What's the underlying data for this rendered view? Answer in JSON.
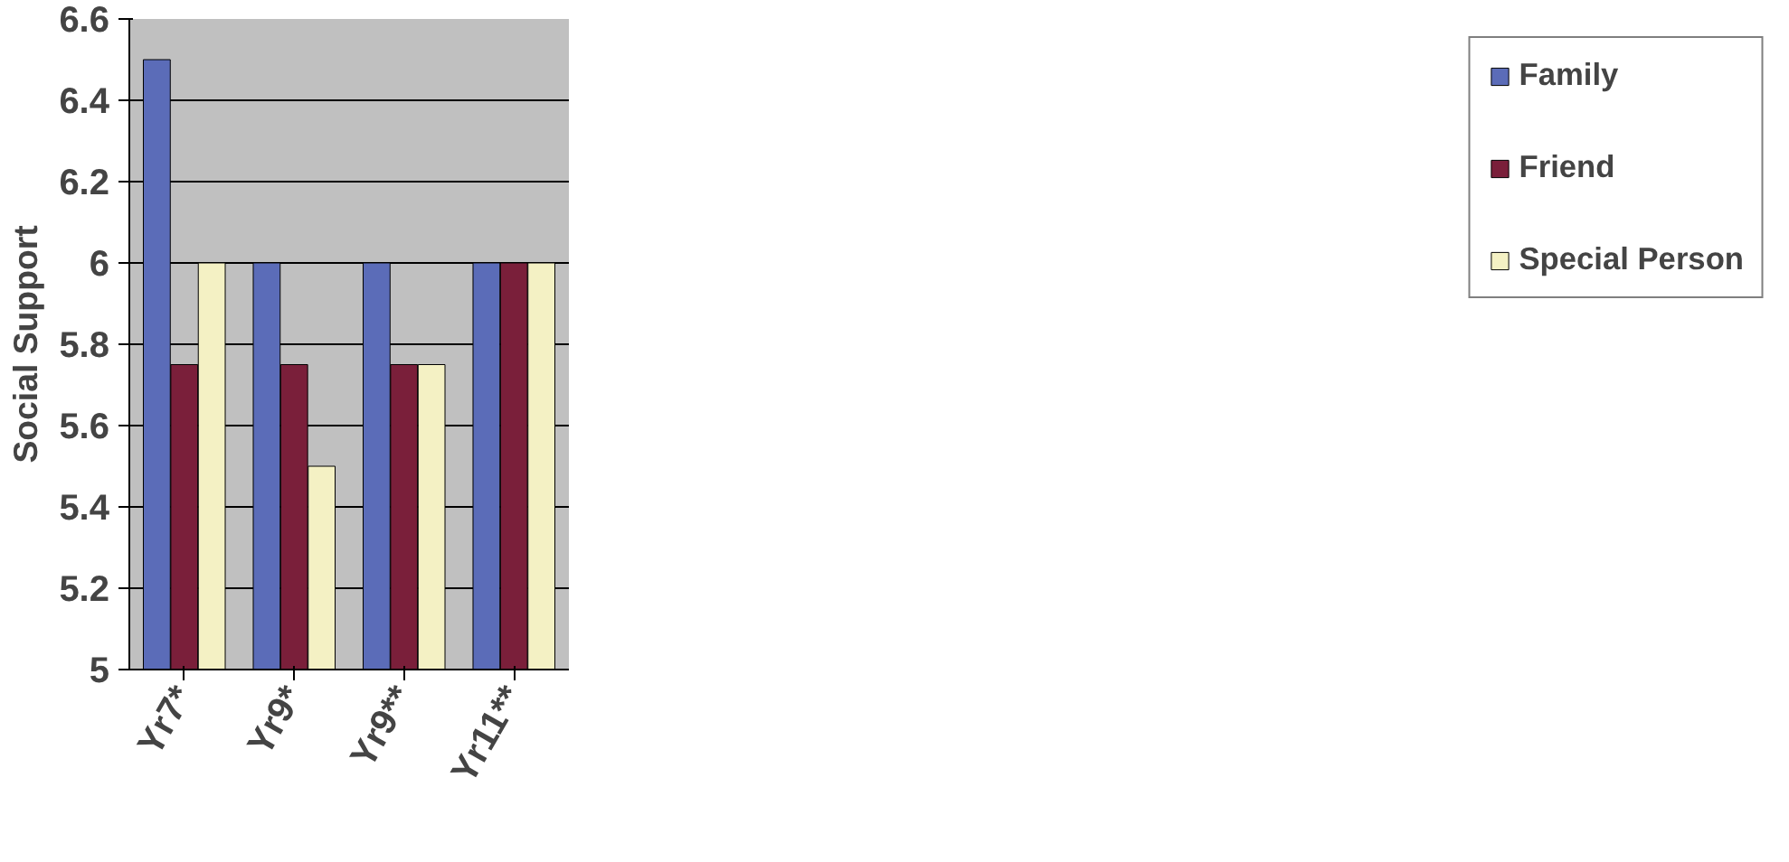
{
  "chart_data": {
    "type": "bar",
    "ylabel": "Social Support",
    "categories": [
      "Yr7*",
      "Yr9*",
      "Yr9**",
      "Yr11**"
    ],
    "series": [
      {
        "name": "Family",
        "color": "#5b6cb8",
        "values": [
          6.5,
          6,
          6,
          6
        ]
      },
      {
        "name": "Friend",
        "color": "#7a1f3a",
        "values": [
          5.75,
          5.75,
          5.75,
          6
        ]
      },
      {
        "name": "Special Person",
        "color": "#f4f1c4",
        "values": [
          6,
          5.5,
          5.75,
          6
        ]
      }
    ],
    "ylim": [
      5,
      6.6
    ],
    "yticks": [
      5,
      5.2,
      5.4,
      5.6,
      5.8,
      6,
      6.2,
      6.4,
      6.6
    ],
    "grid": "y",
    "legend": "right"
  }
}
